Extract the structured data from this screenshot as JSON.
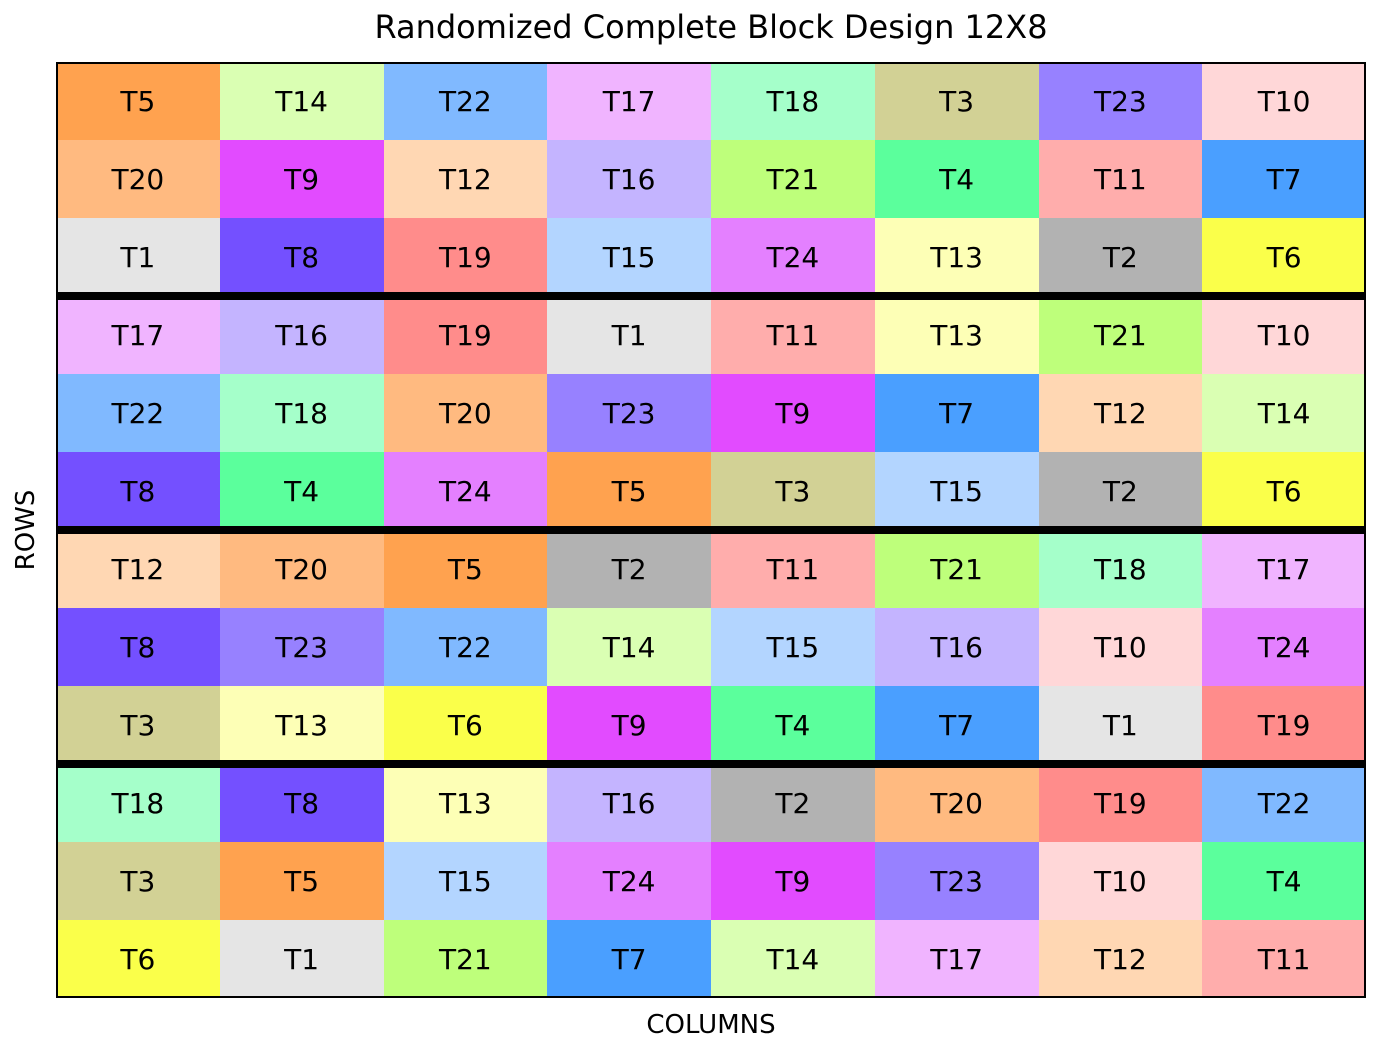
{
  "chart_data": {
    "type": "table",
    "title": "Randomized Complete Block Design 12X8",
    "xlabel": "COLUMNS",
    "ylabel": "ROWS",
    "n_rows": 12,
    "n_cols": 8,
    "block_boundaries_after_rows": [
      3,
      6,
      9
    ],
    "grid": [
      [
        "T5",
        "T14",
        "T22",
        "T17",
        "T18",
        "T3",
        "T23",
        "T10"
      ],
      [
        "T20",
        "T9",
        "T12",
        "T16",
        "T21",
        "T4",
        "T11",
        "T7"
      ],
      [
        "T1",
        "T8",
        "T19",
        "T15",
        "T24",
        "T13",
        "T2",
        "T6"
      ],
      [
        "T17",
        "T16",
        "T19",
        "T1",
        "T11",
        "T13",
        "T21",
        "T10"
      ],
      [
        "T22",
        "T18",
        "T20",
        "T23",
        "T9",
        "T7",
        "T12",
        "T14"
      ],
      [
        "T8",
        "T4",
        "T24",
        "T5",
        "T3",
        "T15",
        "T2",
        "T6"
      ],
      [
        "T12",
        "T20",
        "T5",
        "T2",
        "T11",
        "T21",
        "T18",
        "T17"
      ],
      [
        "T8",
        "T23",
        "T22",
        "T14",
        "T15",
        "T16",
        "T10",
        "T24"
      ],
      [
        "T3",
        "T13",
        "T6",
        "T9",
        "T4",
        "T7",
        "T1",
        "T19"
      ],
      [
        "T18",
        "T8",
        "T13",
        "T16",
        "T2",
        "T20",
        "T19",
        "T22"
      ],
      [
        "T3",
        "T5",
        "T15",
        "T24",
        "T9",
        "T23",
        "T10",
        "T4"
      ],
      [
        "T6",
        "T1",
        "T21",
        "T7",
        "T14",
        "T17",
        "T12",
        "T11"
      ]
    ],
    "treatment_colors": {
      "T1": "#e5e5e5",
      "T2": "#b2b2b2",
      "T3": "#d2d195",
      "T4": "#5bff9c",
      "T5": "#ffa24f",
      "T6": "#faff4a",
      "T7": "#4a9fff",
      "T8": "#7450ff",
      "T9": "#e24bff",
      "T10": "#ffd7d8",
      "T11": "#ffadac",
      "T12": "#ffd7b3",
      "T13": "#fdffb6",
      "T14": "#daffb3",
      "T15": "#b3d5ff",
      "T16": "#c4b4ff",
      "T17": "#f0b4ff",
      "T18": "#a5ffca",
      "T19": "#ff8c8b",
      "T20": "#ffba80",
      "T21": "#beff7b",
      "T22": "#80b9ff",
      "T23": "#9781ff",
      "T24": "#e480ff"
    }
  }
}
